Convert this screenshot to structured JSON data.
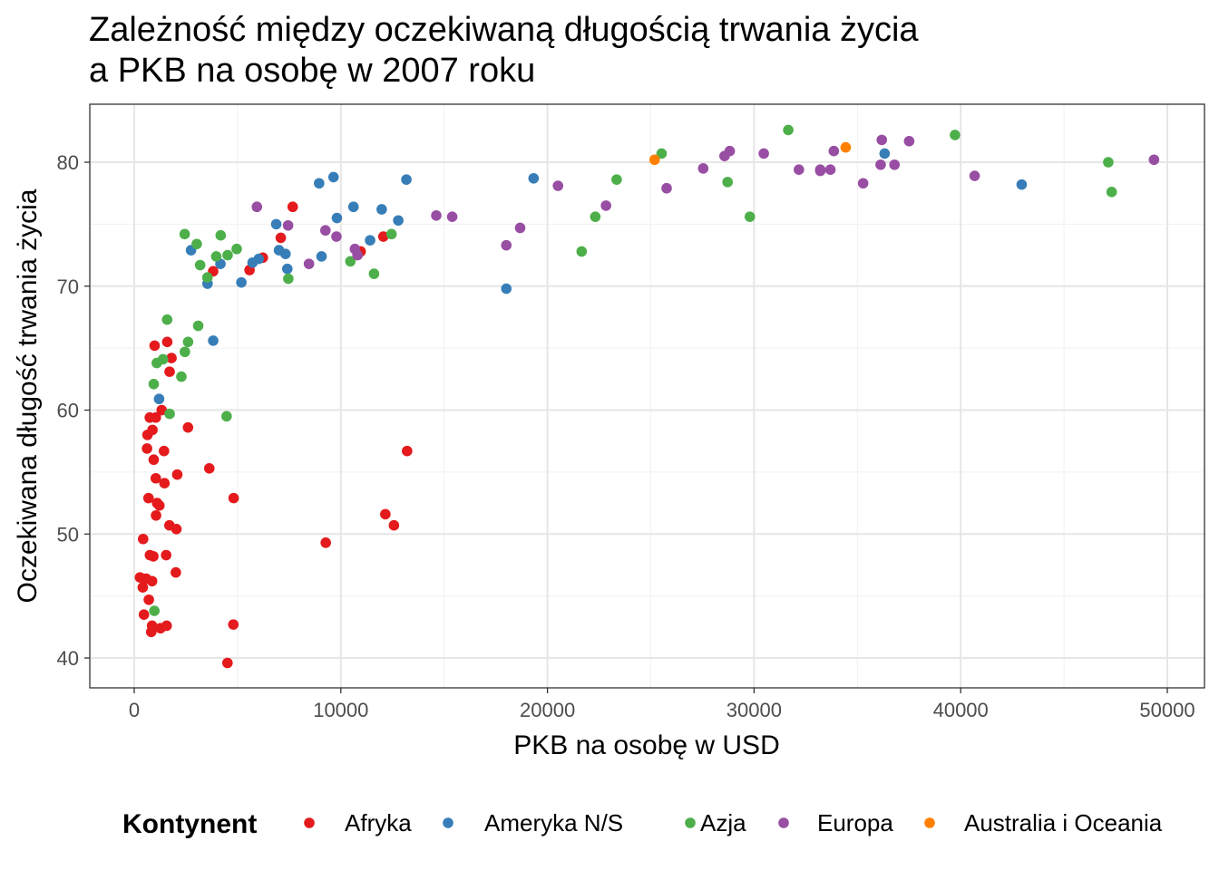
{
  "chart_data": {
    "type": "scatter",
    "title": [
      "Zależność między oczekiwaną długością trwania życia",
      "a PKB na osobę w 2007 roku"
    ],
    "xlabel": "PKB na osobę w USD",
    "ylabel": "Oczekiwana długość trwania życia",
    "xlim": [
      -2151,
      51800
    ],
    "ylim": [
      37.59,
      84.68
    ],
    "x_ticks": [
      0,
      10000,
      20000,
      30000,
      40000,
      50000
    ],
    "x_tick_labels": [
      "0",
      "10000",
      "20000",
      "30000",
      "40000",
      "50000"
    ],
    "y_ticks": [
      40,
      50,
      60,
      70,
      80
    ],
    "y_tick_labels": [
      "40",
      "50",
      "60",
      "70",
      "80"
    ],
    "grid": true,
    "legend": {
      "title": "Kontynent",
      "placement": "bottom"
    },
    "series": [
      {
        "name": "Afryka",
        "color": "#E41A1C",
        "points": [
          [
            6223,
            72.3
          ],
          [
            4797,
            42.7
          ],
          [
            1441,
            56.7
          ],
          [
            12570,
            50.7
          ],
          [
            1217,
            52.3
          ],
          [
            430,
            49.6
          ],
          [
            2042,
            50.4
          ],
          [
            706,
            44.7
          ],
          [
            1704,
            50.7
          ],
          [
            986,
            65.2
          ],
          [
            278,
            46.5
          ],
          [
            3633,
            55.3
          ],
          [
            1545,
            48.3
          ],
          [
            2082,
            54.8
          ],
          [
            5581,
            71.3
          ],
          [
            12154,
            51.6
          ],
          [
            641,
            58.0
          ],
          [
            691,
            52.9
          ],
          [
            13206,
            56.7
          ],
          [
            753,
            59.4
          ],
          [
            1328,
            60.0
          ],
          [
            943,
            56.0
          ],
          [
            579,
            46.4
          ],
          [
            1463,
            54.1
          ],
          [
            1569,
            42.6
          ],
          [
            415,
            45.7
          ],
          [
            12058,
            74.0
          ],
          [
            1045,
            59.4
          ],
          [
            759,
            48.3
          ],
          [
            1043,
            54.5
          ],
          [
            1803,
            64.2
          ],
          [
            10957,
            72.8
          ],
          [
            3820,
            71.2
          ],
          [
            824,
            42.1
          ],
          [
            4811,
            52.9
          ],
          [
            620,
            56.9
          ],
          [
            2014,
            46.9
          ],
          [
            7670,
            76.4
          ],
          [
            863,
            46.2
          ],
          [
            1598,
            65.5
          ],
          [
            1712,
            63.1
          ],
          [
            863,
            42.6
          ],
          [
            926,
            48.2
          ],
          [
            9270,
            49.3
          ],
          [
            2602,
            58.6
          ],
          [
            4513,
            39.6
          ],
          [
            1107,
            52.5
          ],
          [
            883,
            58.4
          ],
          [
            7093,
            73.9
          ],
          [
            1056,
            51.5
          ],
          [
            1271,
            42.4
          ],
          [
            470,
            43.5
          ]
        ]
      },
      {
        "name": "Ameryka N/S",
        "color": "#377EB8",
        "points": [
          [
            12779,
            75.3
          ],
          [
            3822,
            65.6
          ],
          [
            9066,
            72.4
          ],
          [
            36319,
            80.7
          ],
          [
            13172,
            78.6
          ],
          [
            7007,
            72.9
          ],
          [
            9645,
            78.8
          ],
          [
            8948,
            78.3
          ],
          [
            6025,
            72.2
          ],
          [
            6873,
            75.0
          ],
          [
            5728,
            71.9
          ],
          [
            5186,
            70.3
          ],
          [
            1202,
            60.9
          ],
          [
            3548,
            70.2
          ],
          [
            7321,
            72.6
          ],
          [
            11978,
            76.2
          ],
          [
            2749,
            72.9
          ],
          [
            9809,
            75.5
          ],
          [
            4173,
            71.8
          ],
          [
            7409,
            71.4
          ],
          [
            19329,
            78.7
          ],
          [
            18009,
            69.8
          ],
          [
            42952,
            78.2
          ],
          [
            10611,
            76.4
          ],
          [
            11416,
            73.7
          ]
        ]
      },
      {
        "name": "Azja",
        "color": "#4DAF4A",
        "points": [
          [
            975,
            43.8
          ],
          [
            29796,
            75.6
          ],
          [
            1391,
            64.1
          ],
          [
            1714,
            59.7
          ],
          [
            4959,
            73.0
          ],
          [
            39725,
            82.2
          ],
          [
            2452,
            64.7
          ],
          [
            3541,
            70.7
          ],
          [
            11606,
            71.0
          ],
          [
            4471,
            59.5
          ],
          [
            25523,
            80.7
          ],
          [
            31656,
            82.6
          ],
          [
            4519,
            72.5
          ],
          [
            1593,
            67.3
          ],
          [
            23348,
            78.6
          ],
          [
            47307,
            77.6
          ],
          [
            10461,
            72.0
          ],
          [
            12452,
            74.2
          ],
          [
            3096,
            66.8
          ],
          [
            944,
            62.1
          ],
          [
            1091,
            63.8
          ],
          [
            22316,
            75.6
          ],
          [
            2606,
            65.5
          ],
          [
            3190,
            71.7
          ],
          [
            21655,
            72.8
          ],
          [
            47143,
            80.0
          ],
          [
            3970,
            72.4
          ],
          [
            4185,
            74.1
          ],
          [
            28718,
            78.4
          ],
          [
            7458,
            70.6
          ],
          [
            2442,
            74.2
          ],
          [
            3025,
            73.4
          ],
          [
            2281,
            62.7
          ]
        ]
      },
      {
        "name": "Europa",
        "color": "#984EA3",
        "points": [
          [
            5937,
            76.4
          ],
          [
            36126,
            79.8
          ],
          [
            33693,
            79.4
          ],
          [
            7446,
            74.9
          ],
          [
            10681,
            73.0
          ],
          [
            14619,
            75.7
          ],
          [
            22833,
            76.5
          ],
          [
            35278,
            78.3
          ],
          [
            33207,
            79.3
          ],
          [
            30470,
            80.7
          ],
          [
            32170,
            79.4
          ],
          [
            27538,
            79.5
          ],
          [
            18009,
            73.3
          ],
          [
            36181,
            81.8
          ],
          [
            40676,
            78.9
          ],
          [
            28570,
            80.5
          ],
          [
            9254,
            74.5
          ],
          [
            36798,
            79.8
          ],
          [
            49357,
            80.2
          ],
          [
            15390,
            75.6
          ],
          [
            20510,
            78.1
          ],
          [
            10808,
            72.5
          ],
          [
            9787,
            74.0
          ],
          [
            18678,
            74.7
          ],
          [
            25768,
            77.9
          ],
          [
            28821,
            80.9
          ],
          [
            33860,
            80.9
          ],
          [
            37506,
            81.7
          ],
          [
            8458,
            71.8
          ],
          [
            33203,
            79.4
          ]
        ]
      },
      {
        "name": "Australia i Oceania",
        "color": "#FF7F00",
        "points": [
          [
            34435,
            81.2
          ],
          [
            25185,
            80.2
          ]
        ]
      }
    ]
  }
}
